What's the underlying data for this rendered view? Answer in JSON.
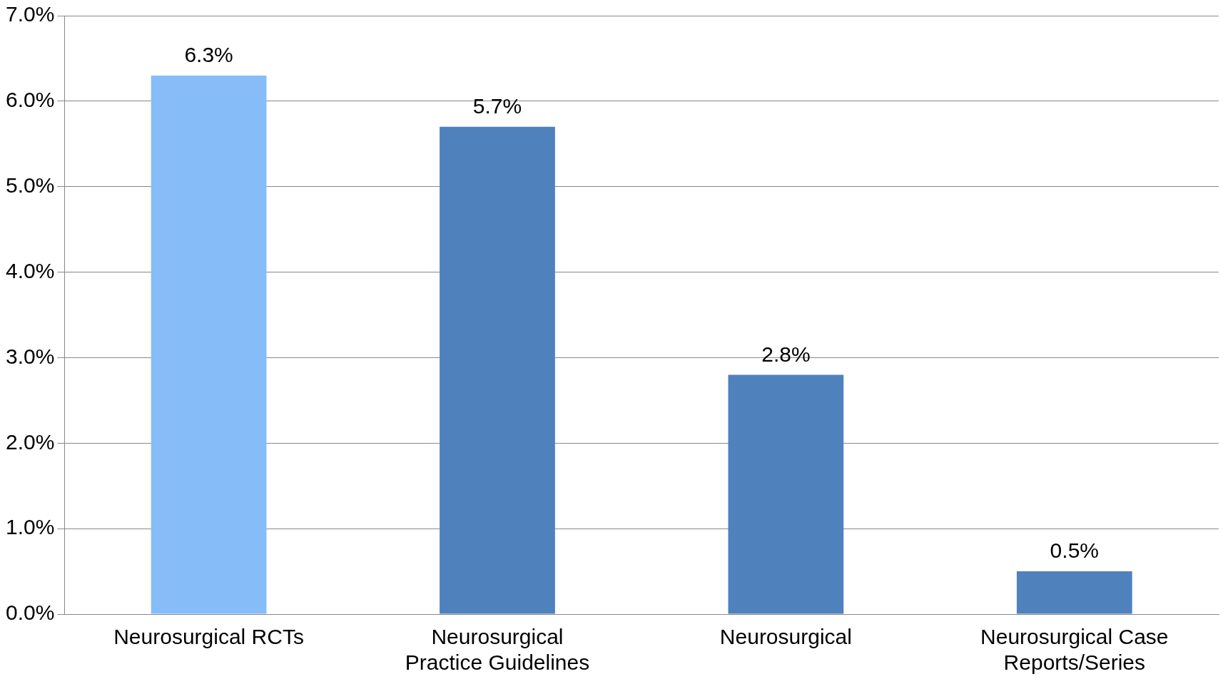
{
  "chart_data": {
    "type": "bar",
    "categories": [
      "Neurosurgical RCTs",
      "Neurosurgical Practice Guidelines",
      "Neurosurgical",
      "Neurosurgical Case Reports/Series"
    ],
    "values": [
      6.3,
      5.7,
      2.8,
      0.5
    ],
    "colors": [
      "#86bdf9",
      "#4f81bd",
      "#4f81bd",
      "#4f81bd"
    ],
    "value_labels": [
      "6.3%",
      "5.7%",
      "2.8%",
      "0.5%"
    ],
    "ylim": [
      0,
      7
    ],
    "yticks": [
      {
        "value": 0,
        "label": "0.0%"
      },
      {
        "value": 1,
        "label": "1.0%"
      },
      {
        "value": 2,
        "label": "2.0%"
      },
      {
        "value": 3,
        "label": "3.0%"
      },
      {
        "value": 4,
        "label": "4.0%"
      },
      {
        "value": 5,
        "label": "5.0%"
      },
      {
        "value": 6,
        "label": "6.0%"
      },
      {
        "value": 7,
        "label": "7.0%"
      }
    ],
    "grid": "y"
  }
}
